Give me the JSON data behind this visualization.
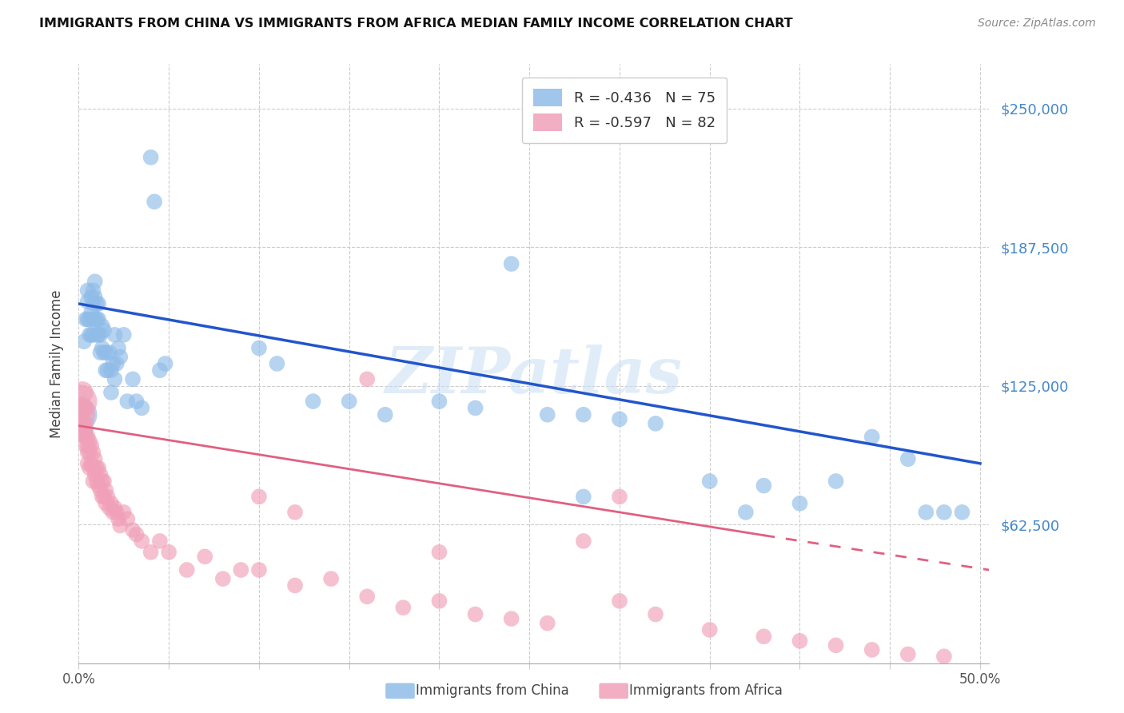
{
  "title": "IMMIGRANTS FROM CHINA VS IMMIGRANTS FROM AFRICA MEDIAN FAMILY INCOME CORRELATION CHART",
  "source": "Source: ZipAtlas.com",
  "ylabel": "Median Family Income",
  "ytick_labels": [
    "$62,500",
    "$125,000",
    "$187,500",
    "$250,000"
  ],
  "ytick_values": [
    62500,
    125000,
    187500,
    250000
  ],
  "ymin": 0,
  "ymax": 270000,
  "xmin": 0.0,
  "xmax": 0.505,
  "china_color": "#90bce8",
  "africa_color": "#f0a0b8",
  "china_line_color": "#2255cc",
  "africa_line_color": "#e06080",
  "watermark": "ZIPatlas",
  "background_color": "#ffffff",
  "china_R": "-0.436",
  "china_N": "75",
  "africa_R": "-0.597",
  "africa_N": "82",
  "china_x": [
    0.001,
    0.002,
    0.003,
    0.004,
    0.005,
    0.005,
    0.005,
    0.006,
    0.006,
    0.007,
    0.007,
    0.007,
    0.008,
    0.008,
    0.008,
    0.008,
    0.009,
    0.009,
    0.009,
    0.01,
    0.01,
    0.01,
    0.011,
    0.011,
    0.011,
    0.012,
    0.012,
    0.013,
    0.013,
    0.014,
    0.014,
    0.015,
    0.015,
    0.016,
    0.017,
    0.018,
    0.018,
    0.019,
    0.02,
    0.02,
    0.021,
    0.022,
    0.023,
    0.025,
    0.027,
    0.03,
    0.032,
    0.035,
    0.04,
    0.042,
    0.1,
    0.11,
    0.13,
    0.15,
    0.17,
    0.2,
    0.22,
    0.24,
    0.26,
    0.28,
    0.3,
    0.32,
    0.35,
    0.38,
    0.4,
    0.42,
    0.44,
    0.46,
    0.47,
    0.48,
    0.49,
    0.37,
    0.28,
    0.045,
    0.048
  ],
  "china_y": [
    112000,
    105000,
    145000,
    155000,
    168000,
    163000,
    155000,
    155000,
    148000,
    165000,
    158000,
    148000,
    168000,
    162000,
    155000,
    148000,
    172000,
    165000,
    155000,
    162000,
    155000,
    148000,
    162000,
    155000,
    148000,
    148000,
    140000,
    152000,
    142000,
    150000,
    140000,
    140000,
    132000,
    132000,
    140000,
    132000,
    122000,
    135000,
    148000,
    128000,
    135000,
    142000,
    138000,
    148000,
    118000,
    128000,
    118000,
    115000,
    228000,
    208000,
    142000,
    135000,
    118000,
    118000,
    112000,
    118000,
    115000,
    180000,
    112000,
    112000,
    110000,
    108000,
    82000,
    80000,
    72000,
    82000,
    102000,
    92000,
    68000,
    68000,
    68000,
    68000,
    75000,
    132000,
    135000
  ],
  "china_sizes": [
    900,
    400,
    200,
    200,
    200,
    200,
    200,
    200,
    200,
    200,
    200,
    200,
    200,
    200,
    200,
    200,
    200,
    200,
    200,
    200,
    200,
    200,
    200,
    200,
    200,
    200,
    200,
    200,
    200,
    200,
    200,
    200,
    200,
    200,
    200,
    200,
    200,
    200,
    200,
    200,
    200,
    200,
    200,
    200,
    200,
    200,
    200,
    200,
    200,
    200,
    200,
    200,
    200,
    200,
    200,
    200,
    200,
    200,
    200,
    200,
    200,
    200,
    200,
    200,
    200,
    200,
    200,
    200,
    200,
    200,
    200,
    200,
    200,
    200,
    200
  ],
  "africa_x": [
    0.001,
    0.001,
    0.001,
    0.002,
    0.002,
    0.002,
    0.003,
    0.003,
    0.003,
    0.004,
    0.004,
    0.004,
    0.005,
    0.005,
    0.005,
    0.005,
    0.006,
    0.006,
    0.006,
    0.007,
    0.007,
    0.008,
    0.008,
    0.008,
    0.009,
    0.009,
    0.01,
    0.01,
    0.011,
    0.011,
    0.012,
    0.012,
    0.013,
    0.013,
    0.014,
    0.014,
    0.015,
    0.015,
    0.016,
    0.017,
    0.018,
    0.019,
    0.02,
    0.021,
    0.022,
    0.023,
    0.025,
    0.027,
    0.03,
    0.032,
    0.035,
    0.04,
    0.045,
    0.05,
    0.06,
    0.07,
    0.08,
    0.09,
    0.1,
    0.12,
    0.14,
    0.16,
    0.18,
    0.2,
    0.22,
    0.24,
    0.26,
    0.28,
    0.3,
    0.32,
    0.35,
    0.38,
    0.4,
    0.42,
    0.44,
    0.46,
    0.48,
    0.3,
    0.16,
    0.2,
    0.1,
    0.12
  ],
  "africa_y": [
    118000,
    112000,
    105000,
    122000,
    115000,
    108000,
    115000,
    108000,
    105000,
    108000,
    102000,
    98000,
    102000,
    98000,
    95000,
    90000,
    100000,
    95000,
    88000,
    98000,
    90000,
    95000,
    88000,
    82000,
    92000,
    85000,
    88000,
    82000,
    88000,
    80000,
    85000,
    78000,
    82000,
    75000,
    82000,
    75000,
    78000,
    72000,
    75000,
    70000,
    72000,
    68000,
    70000,
    68000,
    65000,
    62000,
    68000,
    65000,
    60000,
    58000,
    55000,
    50000,
    55000,
    50000,
    42000,
    48000,
    38000,
    42000,
    42000,
    35000,
    38000,
    30000,
    25000,
    28000,
    22000,
    20000,
    18000,
    55000,
    28000,
    22000,
    15000,
    12000,
    10000,
    8000,
    6000,
    4000,
    3000,
    75000,
    128000,
    50000,
    75000,
    68000
  ],
  "africa_sizes": [
    900,
    700,
    500,
    400,
    400,
    200,
    200,
    200,
    200,
    200,
    200,
    200,
    200,
    200,
    200,
    200,
    200,
    200,
    200,
    200,
    200,
    200,
    200,
    200,
    200,
    200,
    200,
    200,
    200,
    200,
    200,
    200,
    200,
    200,
    200,
    200,
    200,
    200,
    200,
    200,
    200,
    200,
    200,
    200,
    200,
    200,
    200,
    200,
    200,
    200,
    200,
    200,
    200,
    200,
    200,
    200,
    200,
    200,
    200,
    200,
    200,
    200,
    200,
    200,
    200,
    200,
    200,
    200,
    200,
    200,
    200,
    200,
    200,
    200,
    200,
    200,
    200,
    200,
    200,
    200,
    200,
    200
  ]
}
